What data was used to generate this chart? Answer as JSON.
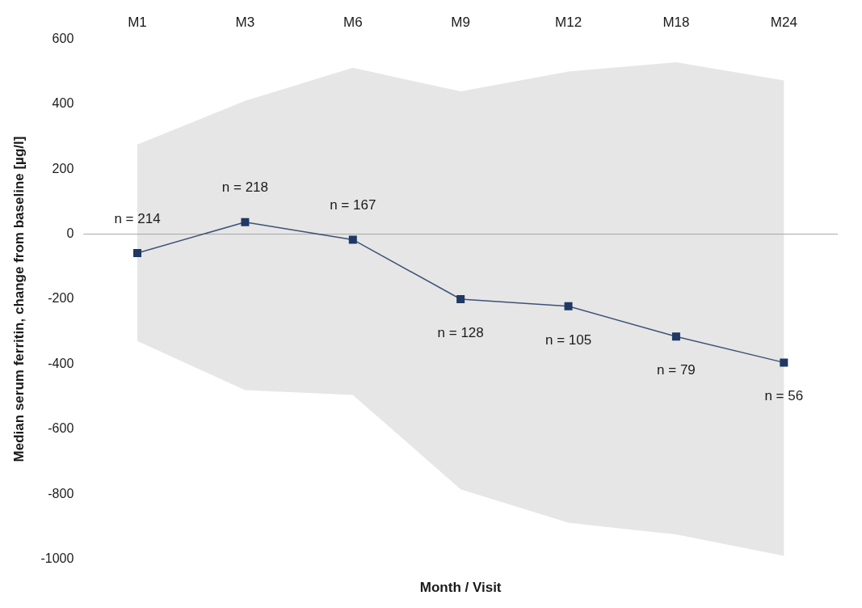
{
  "chart_data": {
    "type": "line",
    "xlabel": "Month / Visit",
    "ylabel": "Median serum ferritin, change from baseline [µg/l]",
    "categories": [
      "M1",
      "M3",
      "M6",
      "M9",
      "M12",
      "M18",
      "M24"
    ],
    "series": [
      {
        "color": "#1f3864",
        "values": [
          -58,
          37,
          -17,
          -200,
          -222,
          -315,
          -395
        ],
        "lower": [
          -329,
          -480,
          -495,
          -785,
          -888,
          -924,
          -990
        ],
        "upper": [
          276,
          410,
          512,
          439,
          500,
          529,
          473
        ]
      }
    ],
    "ylim": [
      -1000,
      600
    ],
    "yticks": [
      -1000,
      -800,
      -600,
      -400,
      -200,
      0,
      200,
      400,
      600
    ],
    "grid": false,
    "legend": false,
    "marker": "square",
    "line_style": "solid",
    "ref_lines": [
      {
        "axis": "y",
        "value": 0,
        "color": "#a6a6a6"
      }
    ],
    "annotations": [
      {
        "text": "n = 214",
        "x": "M1",
        "y": -58
      },
      {
        "text": "n = 218",
        "x": "M3",
        "y": 37
      },
      {
        "text": "n = 167",
        "x": "M6",
        "y": -17
      },
      {
        "text": "n = 128",
        "x": "M9",
        "y": -200
      },
      {
        "text": "n = 105",
        "x": "M12",
        "y": -222
      },
      {
        "text": "n = 79",
        "x": "M18",
        "y": -315
      },
      {
        "text": "n = 56",
        "x": "M24",
        "y": -395
      }
    ]
  }
}
